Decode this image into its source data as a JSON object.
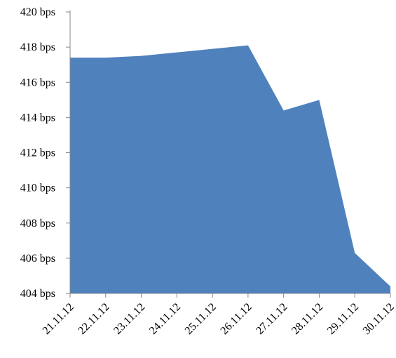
{
  "chart_data": {
    "type": "area",
    "title": "",
    "xlabel": "",
    "ylabel": "",
    "categories": [
      "21.11.12",
      "22.11.12",
      "23.11.12",
      "24.11.12",
      "25.11.12",
      "26.11.12",
      "27.11.12",
      "28.11.12",
      "29.11.12",
      "30.11.12"
    ],
    "series": [
      {
        "values": [
          417.4,
          417.4,
          417.5,
          417.7,
          417.9,
          418.1,
          414.4,
          415.0,
          406.3,
          404.4
        ]
      }
    ],
    "ylim": [
      404,
      420
    ],
    "y_tick_labels": [
      "404 bps",
      "406 bps",
      "408 bps",
      "410 bps",
      "412 bps",
      "414 bps",
      "416 bps",
      "418 bps",
      "420 bps"
    ],
    "colors": {
      "area_fill": "#4f81bd",
      "axis": "#868686"
    },
    "grid": false,
    "legend": "none"
  }
}
